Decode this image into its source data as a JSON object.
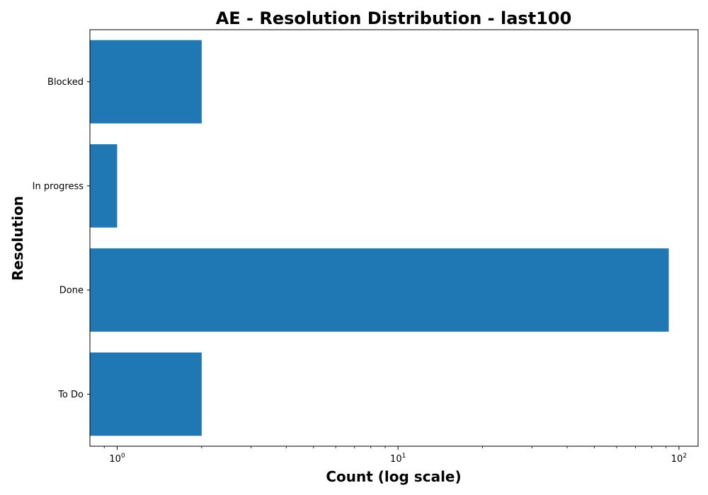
{
  "chart_data": {
    "type": "bar",
    "orientation": "horizontal",
    "title": "AE - Resolution Distribution - last100",
    "xlabel": "Count (log scale)",
    "ylabel": "Resolution",
    "x_scale": "log",
    "xlim": [
      0.8,
      117
    ],
    "x_ticks": [
      {
        "base": "10",
        "exp": "0",
        "value": 1
      },
      {
        "base": "10",
        "exp": "1",
        "value": 10
      },
      {
        "base": "10",
        "exp": "2",
        "value": 100
      }
    ],
    "categories": [
      "To Do",
      "Done",
      "In progress",
      "Blocked"
    ],
    "values": [
      2,
      92,
      1,
      2
    ],
    "bar_color": "#1f77b4",
    "grid": false,
    "legend": "none"
  }
}
